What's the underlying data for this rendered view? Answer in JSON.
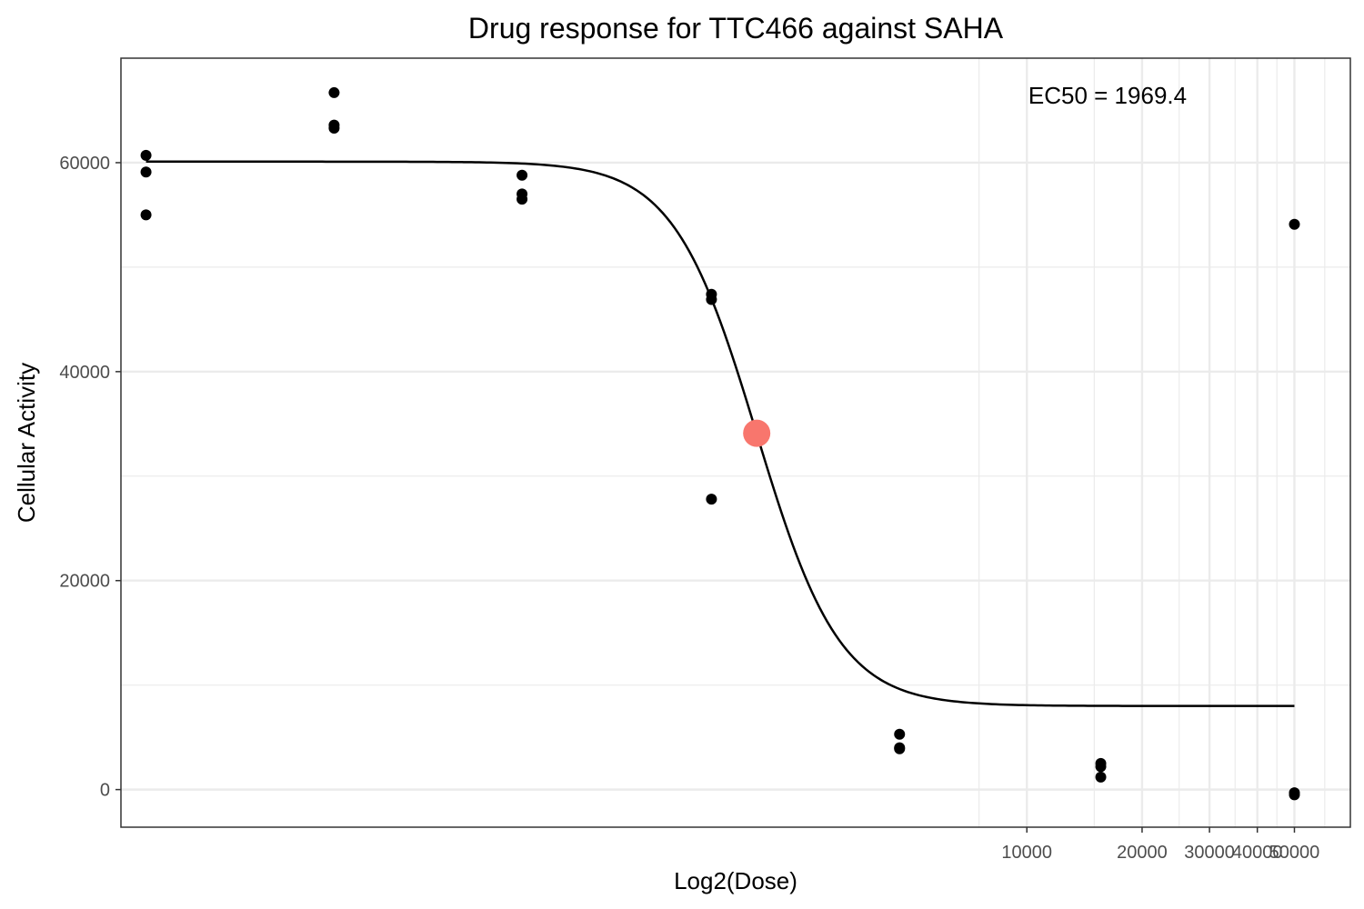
{
  "chart_data": {
    "type": "scatter",
    "title": "Drug response for TTC466 against SAHA",
    "xlabel": "Log2(Dose)",
    "ylabel": "Cellular Activity",
    "x_scale": "log2",
    "x_range": [
      43,
      70000
    ],
    "y_range": [
      -3600,
      70000
    ],
    "x_ticks": [
      10000,
      20000,
      30000,
      40000,
      50000
    ],
    "x_tick_labels": [
      "10000",
      "20000",
      "30000",
      "40000",
      "50000"
    ],
    "y_ticks": [
      0,
      20000,
      40000,
      60000
    ],
    "y_tick_labels": [
      "0",
      "20000",
      "40000",
      "60000"
    ],
    "grid": true,
    "annotation": "EC50 = 1969.4",
    "ec50": {
      "x": 1969.4,
      "y": 34100
    },
    "fit": {
      "top": 60100,
      "bottom": 8000,
      "ec50": 1969.4,
      "hill": 4,
      "x_min": 50,
      "x_max": 50000
    },
    "points": [
      {
        "x": 50,
        "y": 60700
      },
      {
        "x": 50,
        "y": 59100
      },
      {
        "x": 50,
        "y": 55000
      },
      {
        "x": 155,
        "y": 66700
      },
      {
        "x": 155,
        "y": 63600
      },
      {
        "x": 155,
        "y": 63300
      },
      {
        "x": 480,
        "y": 58800
      },
      {
        "x": 480,
        "y": 57000
      },
      {
        "x": 480,
        "y": 56500
      },
      {
        "x": 1500,
        "y": 47400
      },
      {
        "x": 1500,
        "y": 46900
      },
      {
        "x": 1500,
        "y": 27800
      },
      {
        "x": 4650,
        "y": 5300
      },
      {
        "x": 4650,
        "y": 4000
      },
      {
        "x": 4650,
        "y": 3900
      },
      {
        "x": 15600,
        "y": 2500
      },
      {
        "x": 15600,
        "y": 2200
      },
      {
        "x": 15600,
        "y": 1200
      },
      {
        "x": 50000,
        "y": 54100
      },
      {
        "x": 50000,
        "y": -300
      },
      {
        "x": 50000,
        "y": -500
      }
    ],
    "colors": {
      "points": "#000000",
      "ec50_marker": "#f8766d",
      "curve": "#000000",
      "grid": "#ebebeb"
    }
  }
}
